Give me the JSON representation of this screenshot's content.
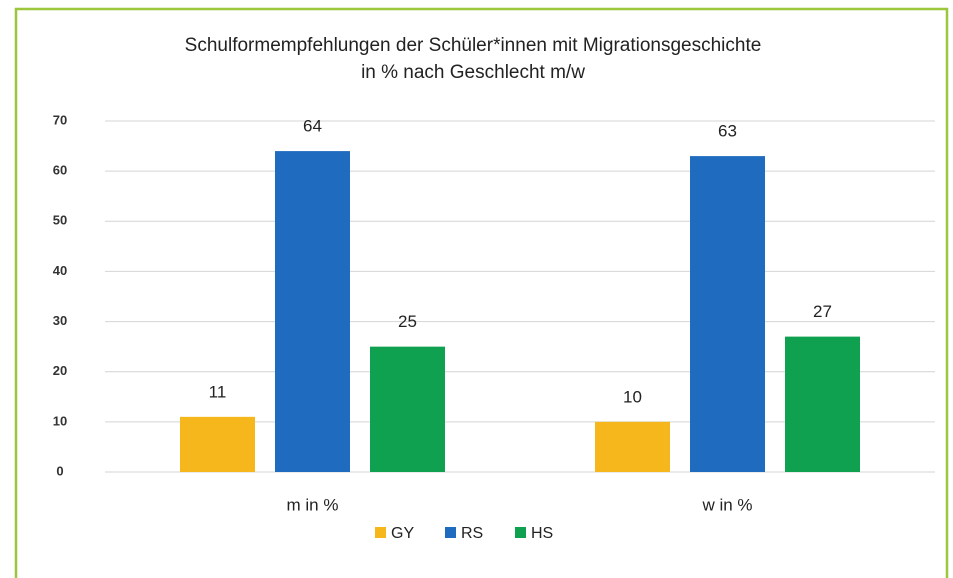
{
  "chart_data": {
    "type": "bar",
    "title": [
      "Schulformempfehlungen der Schüler*innen mit Migrationsgeschichte",
      "in % nach Geschlecht m/w"
    ],
    "categories": [
      "m in %",
      "w in %"
    ],
    "series": [
      {
        "name": "GY",
        "color": "#f6b71d",
        "values": [
          11,
          10
        ]
      },
      {
        "name": "RS",
        "color": "#1f6bbf",
        "values": [
          64,
          63
        ]
      },
      {
        "name": "HS",
        "color": "#0fa14f",
        "values": [
          25,
          27
        ]
      }
    ],
    "ylim": [
      0,
      70
    ],
    "yticks": [
      0,
      10,
      20,
      30,
      40,
      50,
      60,
      70
    ],
    "grid": true,
    "legend": "bottom"
  }
}
